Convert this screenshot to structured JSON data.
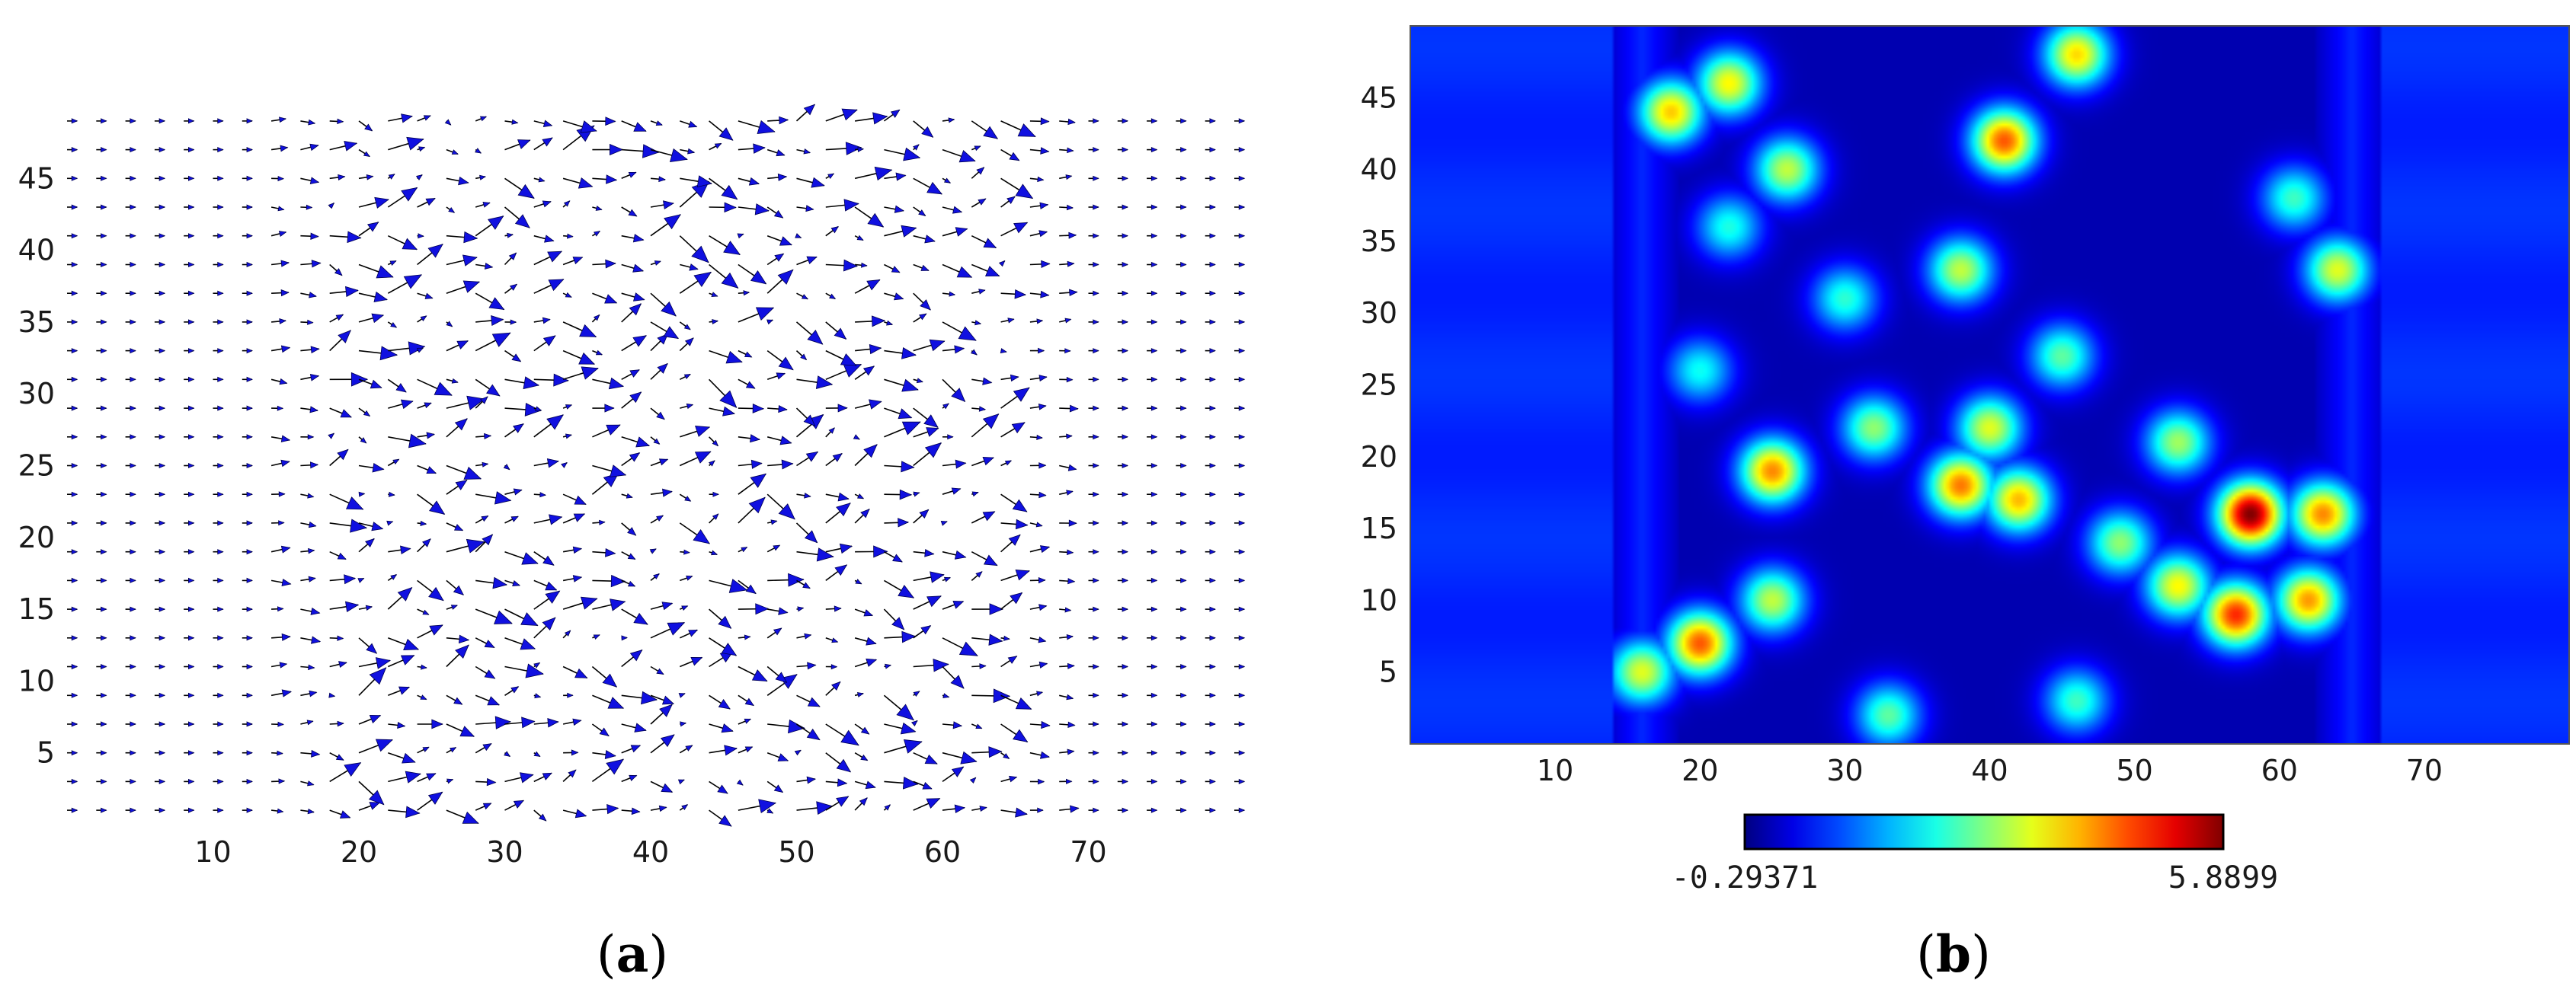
{
  "panels": {
    "a": {
      "caption_open": "(",
      "caption_letter": "a",
      "caption_close": ")"
    },
    "b": {
      "caption_open": "(",
      "caption_letter": "b",
      "caption_close": ")"
    }
  },
  "colors": {
    "solid": "#000000",
    "pore": "#ffffff",
    "arrow_fill": "#1010e0",
    "arrow_line": "#000000",
    "background_flow": "#1a4fe8"
  },
  "chart_data": [
    {
      "type": "quiver",
      "panel": "a",
      "xlim": [
        0,
        80
      ],
      "ylim": [
        0,
        50
      ],
      "xticks": [
        10,
        20,
        30,
        40,
        50,
        60,
        70
      ],
      "yticks": [
        5,
        10,
        15,
        20,
        25,
        30,
        35,
        40,
        45
      ],
      "porous_region_x": [
        16,
        65
      ],
      "grid_spacing": 2
    },
    {
      "type": "heatmap",
      "panel": "b",
      "xlim": [
        0,
        80
      ],
      "ylim": [
        0,
        50
      ],
      "xticks": [
        10,
        20,
        30,
        40,
        50,
        60,
        70
      ],
      "yticks": [
        5,
        10,
        15,
        20,
        25,
        30,
        35,
        40,
        45
      ],
      "colormap": "jet",
      "colorbar": {
        "min_label": "-0.29371",
        "max_label": "5.8899",
        "min": -0.29371,
        "max": 5.8899
      },
      "hotspots": [
        {
          "x": 20,
          "y": 7,
          "v": 4.6
        },
        {
          "x": 16,
          "y": 5,
          "v": 3.4
        },
        {
          "x": 25,
          "y": 10,
          "v": 3.2
        },
        {
          "x": 25,
          "y": 19,
          "v": 4.3
        },
        {
          "x": 22,
          "y": 46,
          "v": 3.6
        },
        {
          "x": 18,
          "y": 44,
          "v": 3.9
        },
        {
          "x": 26,
          "y": 40,
          "v": 3.2
        },
        {
          "x": 41,
          "y": 42,
          "v": 4.6
        },
        {
          "x": 46,
          "y": 48,
          "v": 3.8
        },
        {
          "x": 38,
          "y": 18,
          "v": 4.4
        },
        {
          "x": 42,
          "y": 17,
          "v": 4.0
        },
        {
          "x": 40,
          "y": 22,
          "v": 3.4
        },
        {
          "x": 38,
          "y": 33,
          "v": 3.2
        },
        {
          "x": 58,
          "y": 16,
          "v": 5.9
        },
        {
          "x": 63,
          "y": 16,
          "v": 4.3
        },
        {
          "x": 57,
          "y": 9,
          "v": 4.9
        },
        {
          "x": 53,
          "y": 11,
          "v": 3.6
        },
        {
          "x": 62,
          "y": 10,
          "v": 4.2
        },
        {
          "x": 64,
          "y": 33,
          "v": 3.4
        },
        {
          "x": 53,
          "y": 21,
          "v": 3.0
        },
        {
          "x": 49,
          "y": 14,
          "v": 2.9
        },
        {
          "x": 32,
          "y": 22,
          "v": 2.9
        },
        {
          "x": 33,
          "y": 2,
          "v": 2.6
        },
        {
          "x": 46,
          "y": 3,
          "v": 2.4
        },
        {
          "x": 45,
          "y": 27,
          "v": 2.6
        },
        {
          "x": 30,
          "y": 31,
          "v": 2.3
        },
        {
          "x": 61,
          "y": 38,
          "v": 2.4
        },
        {
          "x": 20,
          "y": 26,
          "v": 2.1
        },
        {
          "x": 22,
          "y": 36,
          "v": 2.2
        }
      ]
    }
  ]
}
